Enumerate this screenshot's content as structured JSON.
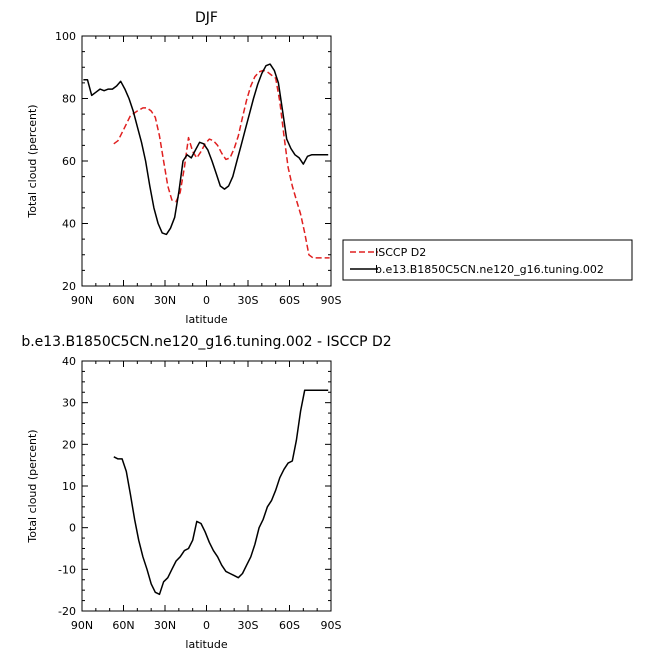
{
  "chart_data": [
    {
      "type": "line",
      "title": "DJF",
      "xlabel": "latitude",
      "ylabel": "Total cloud (percent)",
      "ylim": [
        20,
        100
      ],
      "yticks": [
        "20",
        "40",
        "60",
        "80",
        "100"
      ],
      "xlim": [
        90,
        -90
      ],
      "xticks": [
        "90N",
        "60N",
        "30N",
        "0",
        "30S",
        "60S",
        "90S"
      ],
      "legend_position": "right",
      "series": [
        {
          "name": "ISCCP D2",
          "color": "#e02020",
          "dash": "dashed",
          "x": [
            67,
            64,
            60,
            55,
            50,
            46,
            43,
            40,
            37,
            34,
            31,
            28,
            25,
            22,
            19,
            16,
            13,
            10,
            7,
            4,
            1,
            -2,
            -5,
            -8,
            -11,
            -14,
            -17,
            -20,
            -23,
            -26,
            -29,
            -32,
            -35,
            -38,
            -41,
            -44,
            -47,
            -50,
            -53,
            -56,
            -59,
            -62,
            -65,
            -68,
            -71,
            -74,
            -77,
            -80,
            -83,
            -86,
            -89
          ],
          "y": [
            65.5,
            66.5,
            70,
            74.5,
            76,
            77,
            77,
            76,
            74,
            68,
            60,
            52,
            47.5,
            47,
            50,
            58,
            67.5,
            63,
            61,
            63,
            65.5,
            67,
            66.5,
            65,
            62.5,
            60.5,
            61,
            64,
            68,
            74,
            79.5,
            84,
            87,
            88.5,
            89,
            88.5,
            87.5,
            86.5,
            79,
            68,
            58,
            52,
            47.5,
            43,
            37,
            30,
            29,
            29,
            29,
            29,
            29
          ]
        },
        {
          "name": "b.e13.B1850C5CN.ne120_g16.tuning.002",
          "color": "#000000",
          "dash": "solid",
          "x": [
            89,
            86,
            83,
            80,
            77,
            74,
            71,
            68,
            65,
            62,
            59,
            56,
            53,
            50,
            47,
            44,
            41,
            38,
            35,
            32,
            29,
            26,
            23,
            20,
            17,
            14,
            11,
            8,
            5,
            2,
            -1,
            -4,
            -7,
            -10,
            -13,
            -16,
            -19,
            -22,
            -25,
            -28,
            -31,
            -34,
            -37,
            -40,
            -43,
            -46,
            -49,
            -52,
            -55,
            -58,
            -61,
            -64,
            -67,
            -70,
            -73,
            -76,
            -79,
            -82,
            -85,
            -88
          ],
          "y": [
            86,
            86,
            81,
            82,
            83,
            82.5,
            83,
            83,
            84,
            85.5,
            83,
            80,
            76,
            71,
            66,
            60,
            52,
            45,
            40,
            37,
            36.5,
            38.5,
            42,
            50,
            60,
            62,
            61,
            63.5,
            66,
            65.5,
            63.5,
            60,
            56,
            52,
            51,
            52,
            55,
            60,
            65,
            70,
            75,
            80,
            84.5,
            88,
            90.5,
            91,
            89,
            85,
            76,
            67,
            64,
            62,
            61,
            59,
            61.5,
            62,
            62,
            62,
            62,
            62
          ]
        }
      ]
    },
    {
      "type": "line",
      "title": "b.e13.B1850C5CN.ne120_g16.tuning.002 - ISCCP D2",
      "xlabel": "latitude",
      "ylabel": "Total cloud (percent)",
      "ylim": [
        -20,
        40
      ],
      "yticks": [
        "-20",
        "-10",
        "0",
        "10",
        "20",
        "30",
        "40"
      ],
      "xlim": [
        90,
        -90
      ],
      "xticks": [
        "90N",
        "60N",
        "30N",
        "0",
        "30S",
        "60S",
        "90S"
      ],
      "series": [
        {
          "color": "#000000",
          "dash": "solid",
          "x": [
            67,
            64,
            61,
            58,
            55,
            52,
            49,
            46,
            43,
            40,
            37,
            34,
            31,
            28,
            25,
            22,
            19,
            16,
            13,
            10,
            7,
            4,
            1,
            -2,
            -5,
            -8,
            -11,
            -14,
            -17,
            -20,
            -23,
            -26,
            -29,
            -32,
            -35,
            -38,
            -41,
            -44,
            -47,
            -50,
            -53,
            -56,
            -59,
            -62,
            -65,
            -68,
            -71,
            -74,
            -77,
            -80,
            -83,
            -86,
            -88
          ],
          "y": [
            17,
            16.5,
            16.5,
            13.5,
            8,
            2,
            -3,
            -7,
            -10,
            -13.5,
            -15.5,
            -16,
            -13,
            -12,
            -10,
            -8,
            -7,
            -5.5,
            -5,
            -3,
            1.5,
            1,
            -1,
            -3.5,
            -5.5,
            -7,
            -9,
            -10.5,
            -11,
            -11.5,
            -12,
            -11,
            -9,
            -7,
            -4,
            0,
            2,
            5,
            6.5,
            9,
            12,
            14,
            15.5,
            16,
            21,
            28,
            33,
            33,
            33,
            33,
            33,
            33,
            33
          ]
        }
      ]
    }
  ]
}
